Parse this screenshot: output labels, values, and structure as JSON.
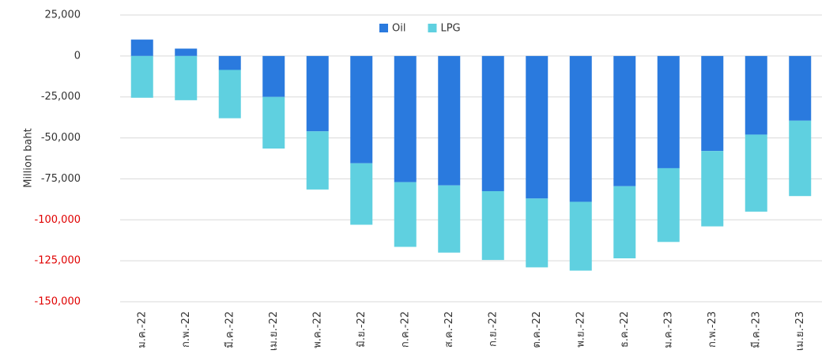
{
  "chart_data": {
    "type": "stacked_bar",
    "y_label": "Million baht",
    "categories": [
      "ม.ค.-22",
      "ก.พ.-22",
      "มี.ค.-22",
      "เม.ย.-22",
      "พ.ค.-22",
      "มิ.ย.-22",
      "ก.ค.-22",
      "ส.ค.-22",
      "ก.ย.-22",
      "ต.ค.-22",
      "พ.ย.-22",
      "ธ.ค.-22",
      "ม.ค.-23",
      "ก.พ.-23",
      "มี.ค.-23",
      "เม.ย.-23"
    ],
    "series": [
      {
        "name": "Oil",
        "color": "#2a7ade",
        "values": [
          10000,
          4500,
          -8500,
          -25000,
          -46000,
          -65500,
          -77000,
          -79000,
          -82500,
          -87000,
          -89000,
          -79500,
          -68500,
          -58000,
          -48000,
          -39500
        ]
      },
      {
        "name": "LPG",
        "color": "#5fd0e0",
        "values": [
          -25500,
          -27000,
          -29500,
          -31500,
          -35500,
          -37500,
          -39500,
          -41000,
          -42000,
          -42000,
          -42000,
          -44000,
          -45000,
          -46000,
          -47000,
          -46000
        ]
      }
    ],
    "ylim": [
      -150000,
      25000
    ],
    "yticks": [
      {
        "value": -150000,
        "label": "-150,000",
        "color": "#e00000"
      },
      {
        "value": -125000,
        "label": "-125,000",
        "color": "#e00000"
      },
      {
        "value": -100000,
        "label": "-100,000",
        "color": "#e00000"
      },
      {
        "value": -75000,
        "label": "-75,000",
        "color": "#333333"
      },
      {
        "value": -50000,
        "label": "-50,000",
        "color": "#333333"
      },
      {
        "value": -25000,
        "label": "-25,000",
        "color": "#333333"
      },
      0,
      {
        "value": 25000,
        "label": "25,000",
        "color": "#333333"
      }
    ],
    "grid": true,
    "legend": "top"
  }
}
